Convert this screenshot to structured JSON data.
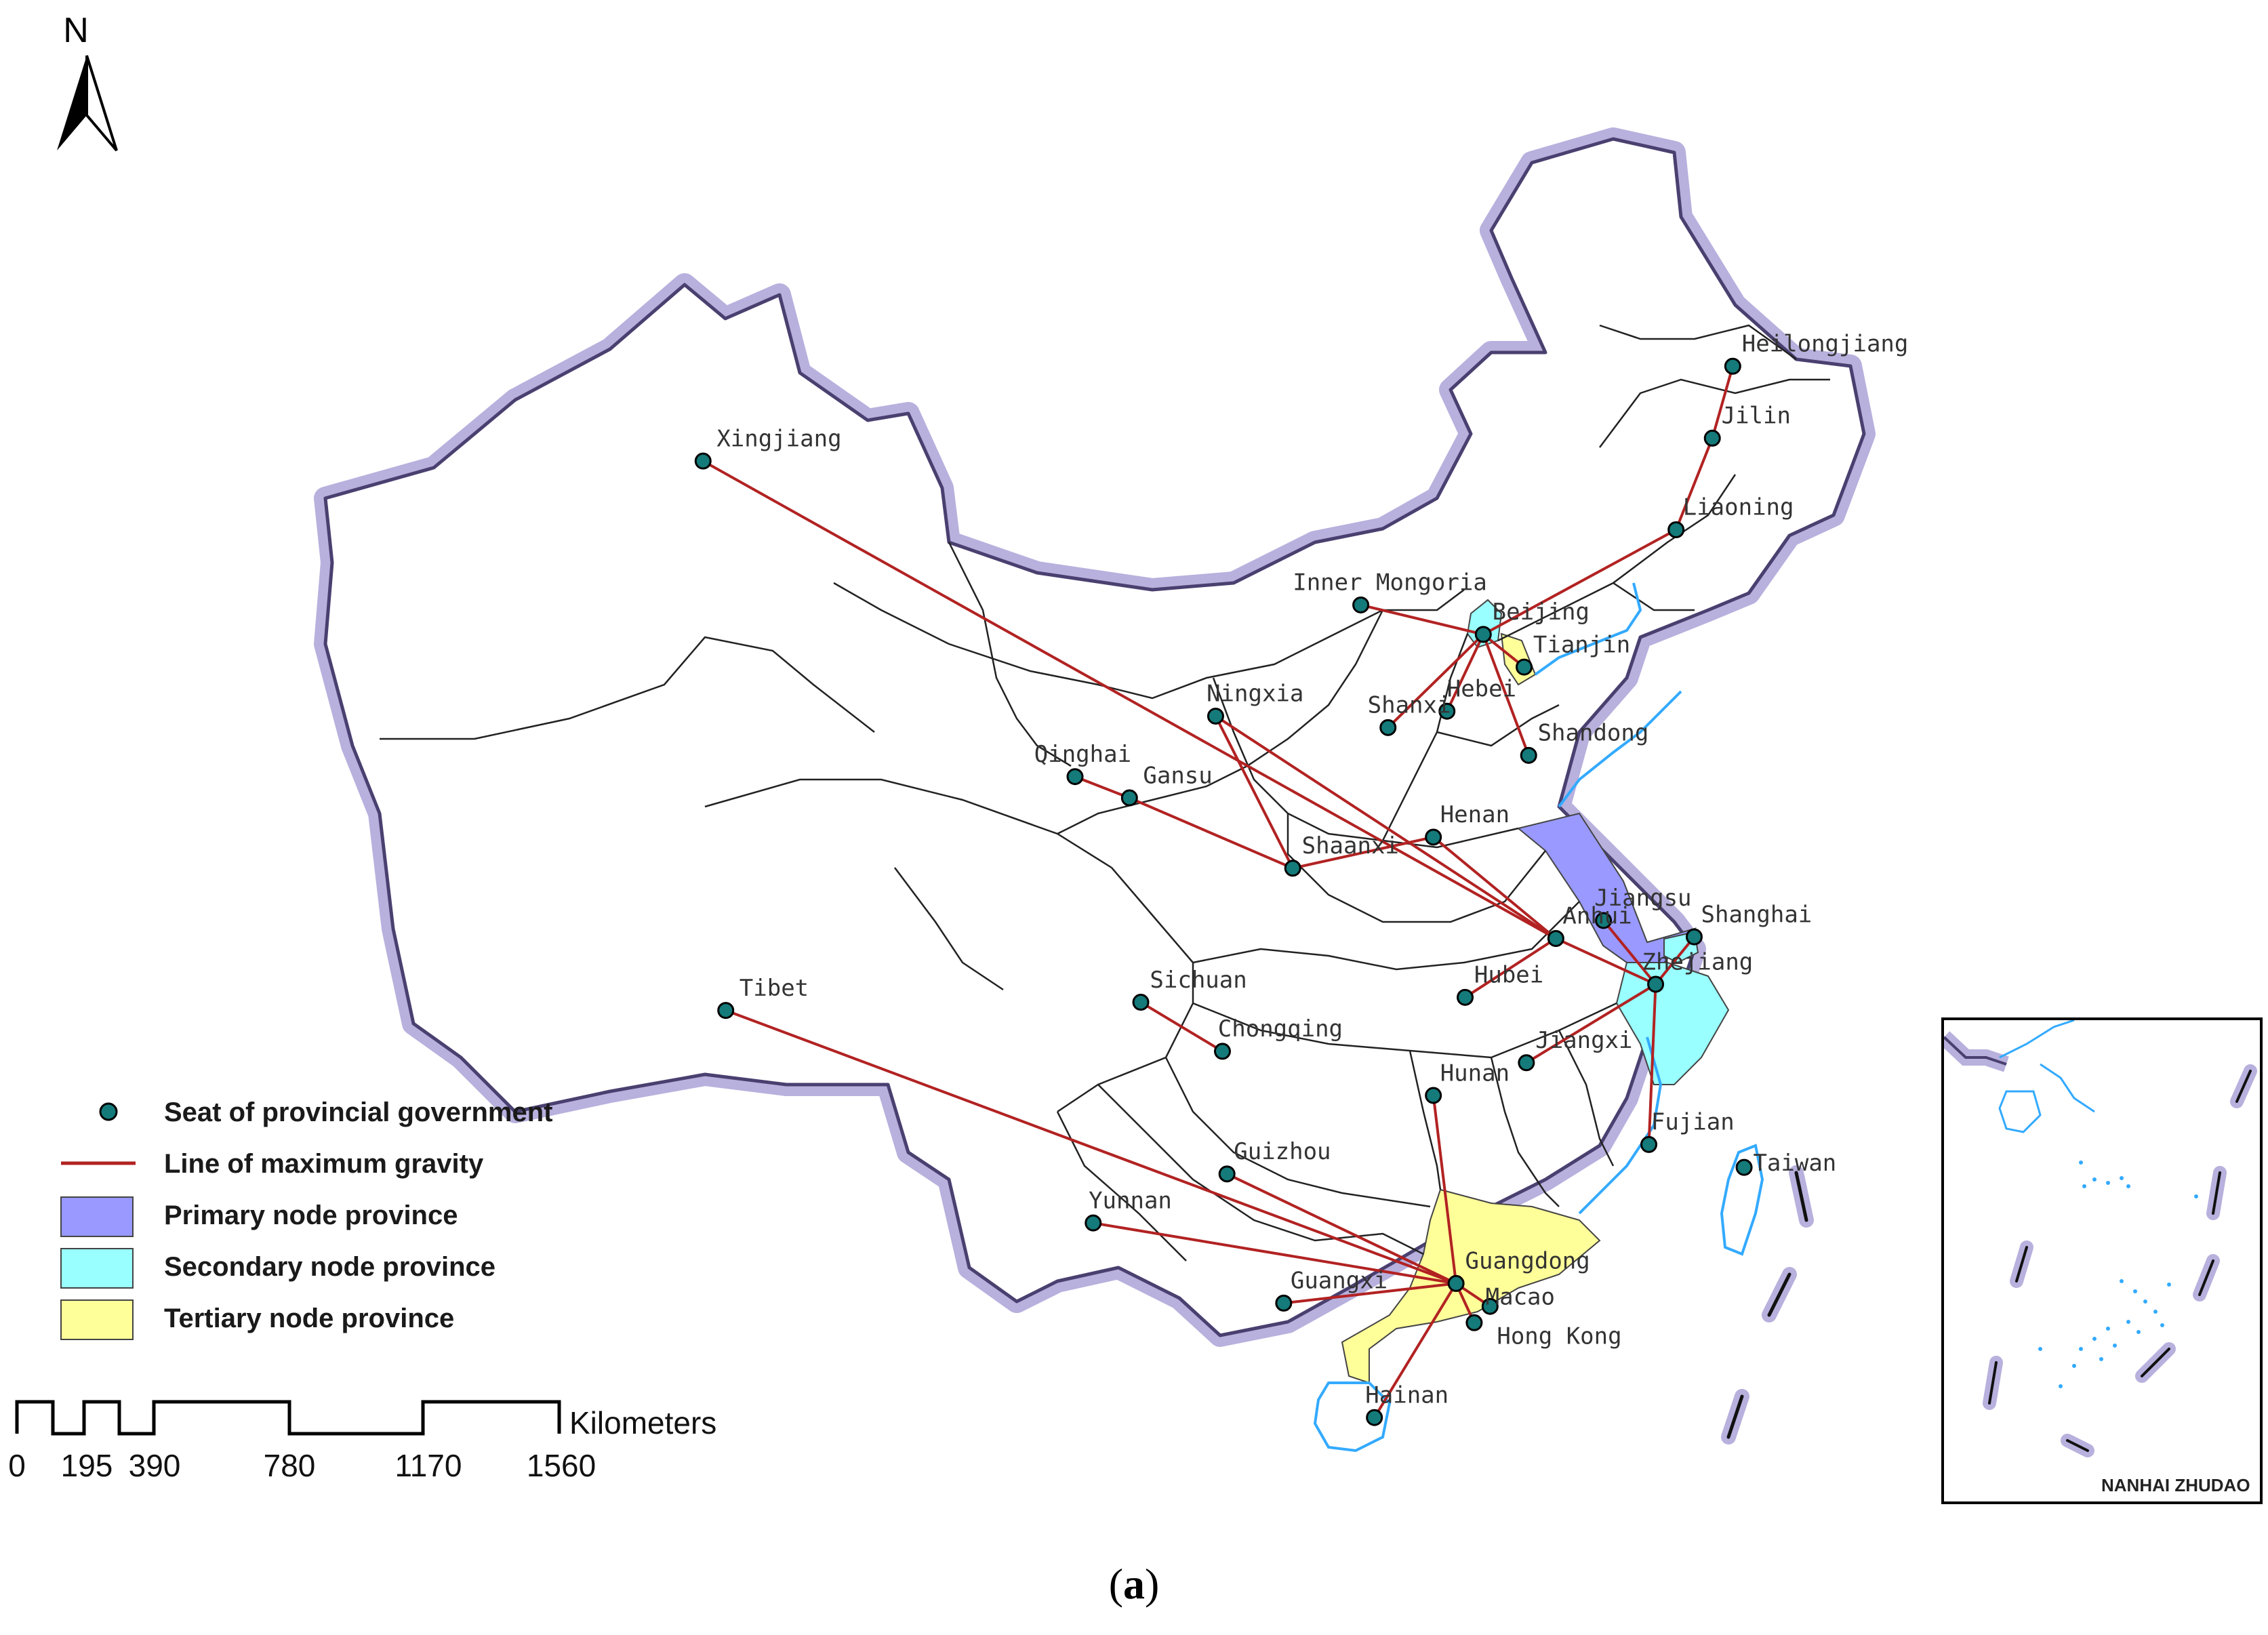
{
  "map": {
    "provinces": [
      {
        "id": "xingjiang",
        "label": "Xingjiang",
        "x": 31.0,
        "y": 28.2,
        "lx": 0.6,
        "ly": -1.4
      },
      {
        "id": "tibet",
        "label": "Tibet",
        "x": 32.0,
        "y": 61.8,
        "lx": 0.6,
        "ly": -1.4
      },
      {
        "id": "qinghai",
        "label": "Qinghai",
        "x": 47.4,
        "y": 47.5,
        "lx": -1.8,
        "ly": -1.4
      },
      {
        "id": "gansu",
        "label": "Gansu",
        "x": 49.8,
        "y": 48.8,
        "lx": 0.6,
        "ly": -1.4
      },
      {
        "id": "ningxia",
        "label": "Ningxia",
        "x": 53.6,
        "y": 43.8,
        "lx": -0.4,
        "ly": -1.4
      },
      {
        "id": "shaanxi",
        "label": "Shaanxi",
        "x": 57.0,
        "y": 53.1,
        "lx": 0.4,
        "ly": -1.4
      },
      {
        "id": "sichuan",
        "label": "Sichuan",
        "x": 50.3,
        "y": 61.3,
        "lx": 0.4,
        "ly": -1.4
      },
      {
        "id": "chongqing",
        "label": "Chongqing",
        "x": 53.9,
        "y": 64.3,
        "lx": -0.2,
        "ly": -1.4
      },
      {
        "id": "yunnan",
        "label": "Yunnan",
        "x": 48.2,
        "y": 74.8,
        "lx": -0.2,
        "ly": -1.4
      },
      {
        "id": "guizhou",
        "label": "Guizhou",
        "x": 54.1,
        "y": 71.8,
        "lx": 0.3,
        "ly": -1.4
      },
      {
        "id": "guangxi",
        "label": "Guangxi",
        "x": 56.6,
        "y": 79.7,
        "lx": 0.3,
        "ly": -1.4
      },
      {
        "id": "hainan",
        "label": "Hainan",
        "x": 60.6,
        "y": 86.7,
        "lx": -0.4,
        "ly": -1.4
      },
      {
        "id": "guangdong",
        "label": "Guangdong",
        "x": 64.2,
        "y": 78.5,
        "lx": 0.4,
        "ly": -1.4
      },
      {
        "id": "macao",
        "label": "Macao",
        "x": 65.7,
        "y": 79.9,
        "lx": -0.2,
        "ly": -0.6
      },
      {
        "id": "hongkong",
        "label": "Hong Kong",
        "x": 65.0,
        "y": 80.9,
        "lx": 1.0,
        "ly": 0.8
      },
      {
        "id": "hunan",
        "label": "Hunan",
        "x": 63.2,
        "y": 67.0,
        "lx": 0.3,
        "ly": -1.4
      },
      {
        "id": "jiangxi",
        "label": "Jiangxi",
        "x": 67.3,
        "y": 65.0,
        "lx": 0.4,
        "ly": -1.4
      },
      {
        "id": "fujian",
        "label": "Fujian",
        "x": 72.7,
        "y": 70.0,
        "lx": 0.1,
        "ly": -1.4
      },
      {
        "id": "taiwan",
        "label": "Taiwan",
        "x": 76.9,
        "y": 71.4,
        "lx": 0.4,
        "ly": -0.3
      },
      {
        "id": "hubei",
        "label": "Hubei",
        "x": 64.6,
        "y": 61.0,
        "lx": 0.4,
        "ly": -1.4
      },
      {
        "id": "henan",
        "label": "Henan",
        "x": 63.2,
        "y": 51.2,
        "lx": 0.3,
        "ly": -1.4
      },
      {
        "id": "anhui",
        "label": "Anhui",
        "x": 68.6,
        "y": 57.4,
        "lx": 0.3,
        "ly": -1.4
      },
      {
        "id": "jiangsu",
        "label": "Jiangsu",
        "x": 70.7,
        "y": 56.3,
        "lx": -0.4,
        "ly": -1.4
      },
      {
        "id": "shanghai",
        "label": "Shanghai",
        "x": 74.7,
        "y": 57.3,
        "lx": 0.3,
        "ly": -1.4
      },
      {
        "id": "zhejiang",
        "label": "Zhejiang",
        "x": 73.0,
        "y": 60.2,
        "lx": -0.6,
        "ly": -1.4
      },
      {
        "id": "shandong",
        "label": "Shandong",
        "x": 67.4,
        "y": 46.2,
        "lx": 0.4,
        "ly": -1.4
      },
      {
        "id": "shanxi",
        "label": "Shanxi",
        "x": 61.2,
        "y": 44.5,
        "lx": -0.9,
        "ly": -1.4
      },
      {
        "id": "hebei",
        "label": "Hebei",
        "x": 63.8,
        "y": 43.5,
        "lx": 0.0,
        "ly": -1.4
      },
      {
        "id": "tianjin",
        "label": "Tianjin",
        "x": 67.2,
        "y": 40.8,
        "lx": 0.4,
        "ly": -1.4
      },
      {
        "id": "beijing",
        "label": "Beijing",
        "x": 65.4,
        "y": 38.8,
        "lx": 0.4,
        "ly": -1.4
      },
      {
        "id": "innermongolia",
        "label": "Inner Mongoria",
        "x": 60.0,
        "y": 37.0,
        "lx": -3.0,
        "ly": -1.4
      },
      {
        "id": "liaoning",
        "label": "Liaoning",
        "x": 73.9,
        "y": 32.4,
        "lx": 0.3,
        "ly": -1.4
      },
      {
        "id": "jilin",
        "label": "Jilin",
        "x": 75.5,
        "y": 26.8,
        "lx": 0.4,
        "ly": -1.4
      },
      {
        "id": "heilongjiang",
        "label": "Heilongjiang",
        "x": 76.4,
        "y": 22.4,
        "lx": 0.4,
        "ly": -1.4
      }
    ],
    "gravity_lines": [
      [
        "xingjiang",
        "anhui"
      ],
      [
        "tibet",
        "guangdong"
      ],
      [
        "qinghai",
        "gansu"
      ],
      [
        "gansu",
        "shaanxi"
      ],
      [
        "ningxia",
        "shaanxi"
      ],
      [
        "ningxia",
        "anhui"
      ],
      [
        "shaanxi",
        "henan"
      ],
      [
        "henan",
        "anhui"
      ],
      [
        "sichuan",
        "chongqing"
      ],
      [
        "yunnan",
        "guangdong"
      ],
      [
        "guizhou",
        "guangdong"
      ],
      [
        "guangxi",
        "guangdong"
      ],
      [
        "hainan",
        "guangdong"
      ],
      [
        "macao",
        "guangdong"
      ],
      [
        "hongkong",
        "guangdong"
      ],
      [
        "hunan",
        "guangdong"
      ],
      [
        "jiangxi",
        "zhejiang"
      ],
      [
        "fujian",
        "zhejiang"
      ],
      [
        "hubei",
        "anhui"
      ],
      [
        "anhui",
        "zhejiang"
      ],
      [
        "shanghai",
        "zhejiang"
      ],
      [
        "zhejiang",
        "jiangsu"
      ],
      [
        "shandong",
        "beijing"
      ],
      [
        "shanxi",
        "beijing"
      ],
      [
        "hebei",
        "beijing"
      ],
      [
        "tianjin",
        "beijing"
      ],
      [
        "innermongolia",
        "beijing"
      ],
      [
        "liaoning",
        "beijing"
      ],
      [
        "jilin",
        "liaoning"
      ],
      [
        "heilongjiang",
        "jilin"
      ]
    ],
    "primary_nodes": [
      "jiangsu"
    ],
    "secondary_nodes": [
      "shanghai",
      "zhejiang",
      "beijing"
    ],
    "tertiary_nodes": [
      "guangdong",
      "tianjin"
    ]
  },
  "colors": {
    "primary": "#9999ff",
    "secondary": "#99ffff",
    "tertiary": "#ffff99",
    "line": "#b22222",
    "point": "#147a7a",
    "coast": "#33aaff",
    "border_halo": "#b8b0dd",
    "border": "#4a4070"
  },
  "north_arrow": {
    "label": "N"
  },
  "legend": {
    "point_label": "Seat of provincial government",
    "line_label": "Line of maximum gravity",
    "primary_label": "Primary node province",
    "secondary_label": "Secondary node province",
    "tertiary_label": "Tertiary node province"
  },
  "scale_bar": {
    "unit": "Kilometers",
    "ticks": [
      "0",
      "195",
      "390",
      "780",
      "1170",
      "1560"
    ]
  },
  "inset": {
    "label": "NANHAI ZHUDAO"
  },
  "caption": {
    "letter": "a"
  }
}
